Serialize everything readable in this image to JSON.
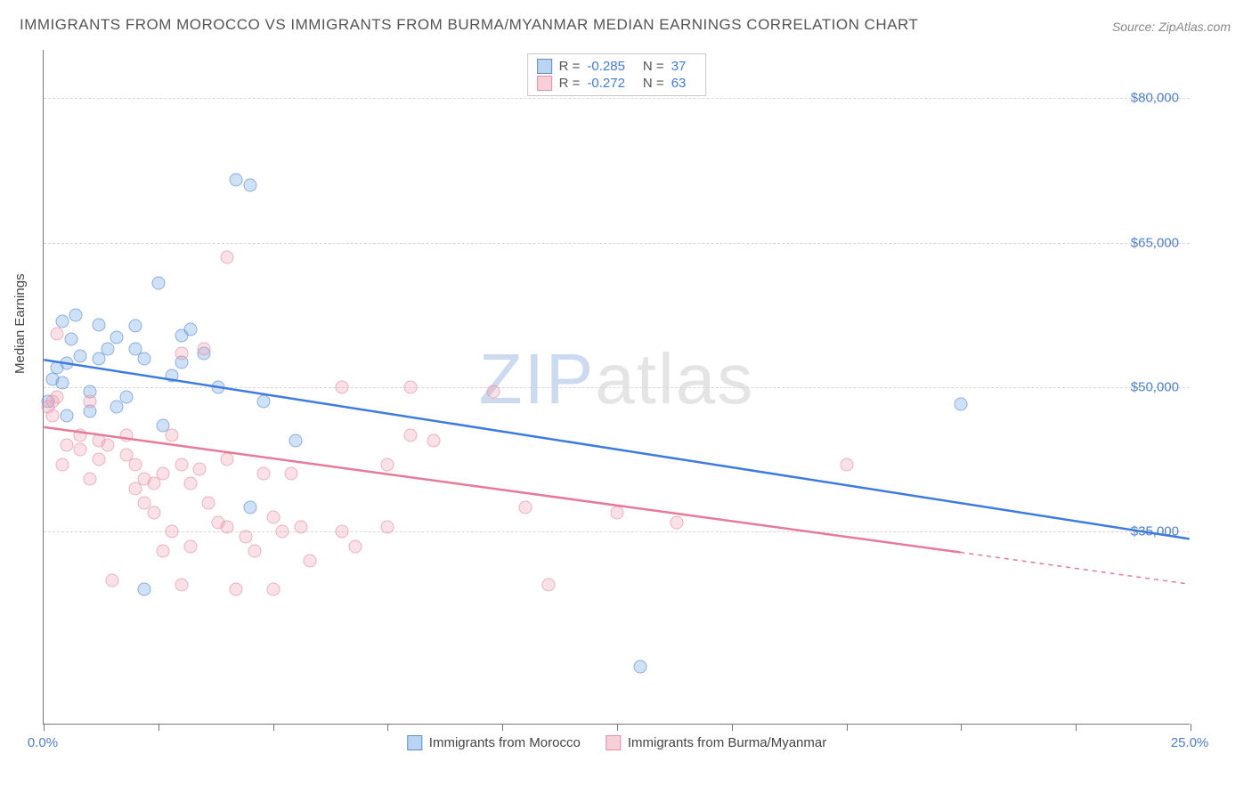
{
  "title": "IMMIGRANTS FROM MOROCCO VS IMMIGRANTS FROM BURMA/MYANMAR MEDIAN EARNINGS CORRELATION CHART",
  "source": "Source: ZipAtlas.com",
  "y_axis_label": "Median Earnings",
  "watermark": {
    "part1": "ZIP",
    "part2": "atlas"
  },
  "chart": {
    "type": "scatter",
    "background_color": "#ffffff",
    "grid_color": "#d8d8d8",
    "axis_color": "#777777",
    "xlim": [
      0,
      25
    ],
    "ylim": [
      15000,
      85000
    ],
    "x_ticks": [
      0,
      2.5,
      5.0,
      7.5,
      10.0,
      12.5,
      15.0,
      17.5,
      20.0,
      22.5,
      25.0
    ],
    "x_tick_labels": {
      "0": "0.0%",
      "25": "25.0%"
    },
    "y_ticks": [
      35000,
      50000,
      65000,
      80000
    ],
    "y_tick_labels": {
      "35000": "$35,000",
      "50000": "$50,000",
      "65000": "$65,000",
      "80000": "$80,000"
    },
    "series": [
      {
        "name": "Immigrants from Morocco",
        "color_fill": "rgba(120,170,230,0.5)",
        "color_border": "#5a8dd0",
        "marker": "circle",
        "marker_size": 15,
        "R": "-0.285",
        "N": "37",
        "trend": {
          "x1": 0,
          "y1": 52800,
          "x2": 25,
          "y2": 34200,
          "color": "#3d7be0",
          "width": 2.5
        },
        "points": [
          [
            0.1,
            48500
          ],
          [
            0.2,
            50800
          ],
          [
            0.3,
            52000
          ],
          [
            0.4,
            56800
          ],
          [
            0.5,
            52500
          ],
          [
            0.6,
            55000
          ],
          [
            0.7,
            57500
          ],
          [
            0.8,
            53200
          ],
          [
            1.0,
            47500
          ],
          [
            1.0,
            49500
          ],
          [
            1.2,
            56500
          ],
          [
            1.2,
            53000
          ],
          [
            1.4,
            54000
          ],
          [
            1.6,
            55200
          ],
          [
            1.6,
            48000
          ],
          [
            2.0,
            56400
          ],
          [
            2.0,
            54000
          ],
          [
            2.2,
            53000
          ],
          [
            2.5,
            60800
          ],
          [
            2.8,
            51200
          ],
          [
            3.0,
            55400
          ],
          [
            3.0,
            52600
          ],
          [
            3.2,
            56000
          ],
          [
            3.5,
            53500
          ],
          [
            4.2,
            71500
          ],
          [
            4.5,
            71000
          ],
          [
            4.5,
            37500
          ],
          [
            5.5,
            44500
          ],
          [
            2.2,
            29000
          ],
          [
            13.0,
            21000
          ],
          [
            20.0,
            48200
          ],
          [
            0.4,
            50500
          ],
          [
            0.5,
            47000
          ],
          [
            1.8,
            49000
          ],
          [
            2.6,
            46000
          ],
          [
            3.8,
            50000
          ],
          [
            4.8,
            48500
          ]
        ]
      },
      {
        "name": "Immigrants from Burma/Myanmar",
        "color_fill": "rgba(240,160,180,0.45)",
        "color_border": "#e88ca5",
        "marker": "circle",
        "marker_size": 15,
        "R": "-0.272",
        "N": "63",
        "trend": {
          "x1": 0,
          "y1": 45800,
          "x2": 20,
          "y2": 32800,
          "color": "#e67a98",
          "width": 2.5,
          "extend_dashed_to": 25,
          "extend_y": 29500
        },
        "points": [
          [
            0.1,
            48000
          ],
          [
            0.2,
            47000
          ],
          [
            0.2,
            48500
          ],
          [
            0.3,
            49000
          ],
          [
            0.3,
            55500
          ],
          [
            0.4,
            42000
          ],
          [
            0.5,
            44000
          ],
          [
            0.8,
            45000
          ],
          [
            0.8,
            43500
          ],
          [
            1.0,
            48500
          ],
          [
            1.0,
            40500
          ],
          [
            1.2,
            44500
          ],
          [
            1.2,
            42500
          ],
          [
            1.4,
            44000
          ],
          [
            1.5,
            30000
          ],
          [
            1.8,
            45000
          ],
          [
            1.8,
            43000
          ],
          [
            2.0,
            42000
          ],
          [
            2.0,
            39500
          ],
          [
            2.2,
            40500
          ],
          [
            2.2,
            38000
          ],
          [
            2.4,
            40000
          ],
          [
            2.4,
            37000
          ],
          [
            2.6,
            41000
          ],
          [
            2.6,
            33000
          ],
          [
            2.8,
            45000
          ],
          [
            2.8,
            35000
          ],
          [
            3.0,
            42000
          ],
          [
            3.0,
            29500
          ],
          [
            3.2,
            40000
          ],
          [
            3.2,
            33500
          ],
          [
            3.4,
            41500
          ],
          [
            3.5,
            54000
          ],
          [
            3.6,
            38000
          ],
          [
            3.8,
            36000
          ],
          [
            4.0,
            42500
          ],
          [
            4.0,
            35500
          ],
          [
            4.0,
            63500
          ],
          [
            4.2,
            29000
          ],
          [
            4.4,
            34500
          ],
          [
            4.6,
            33000
          ],
          [
            4.8,
            41000
          ],
          [
            5.0,
            29000
          ],
          [
            5.0,
            36500
          ],
          [
            5.2,
            35000
          ],
          [
            5.4,
            41000
          ],
          [
            5.6,
            35500
          ],
          [
            5.8,
            32000
          ],
          [
            6.5,
            35000
          ],
          [
            6.5,
            50000
          ],
          [
            6.8,
            33500
          ],
          [
            7.5,
            42000
          ],
          [
            7.5,
            35500
          ],
          [
            8.0,
            45000
          ],
          [
            8.0,
            50000
          ],
          [
            8.5,
            44500
          ],
          [
            9.8,
            49500
          ],
          [
            10.5,
            37500
          ],
          [
            11.0,
            29500
          ],
          [
            12.5,
            37000
          ],
          [
            13.8,
            36000
          ],
          [
            17.5,
            42000
          ],
          [
            3.0,
            53500
          ]
        ]
      }
    ]
  },
  "stats_labels": {
    "R": "R =",
    "N": "N ="
  }
}
